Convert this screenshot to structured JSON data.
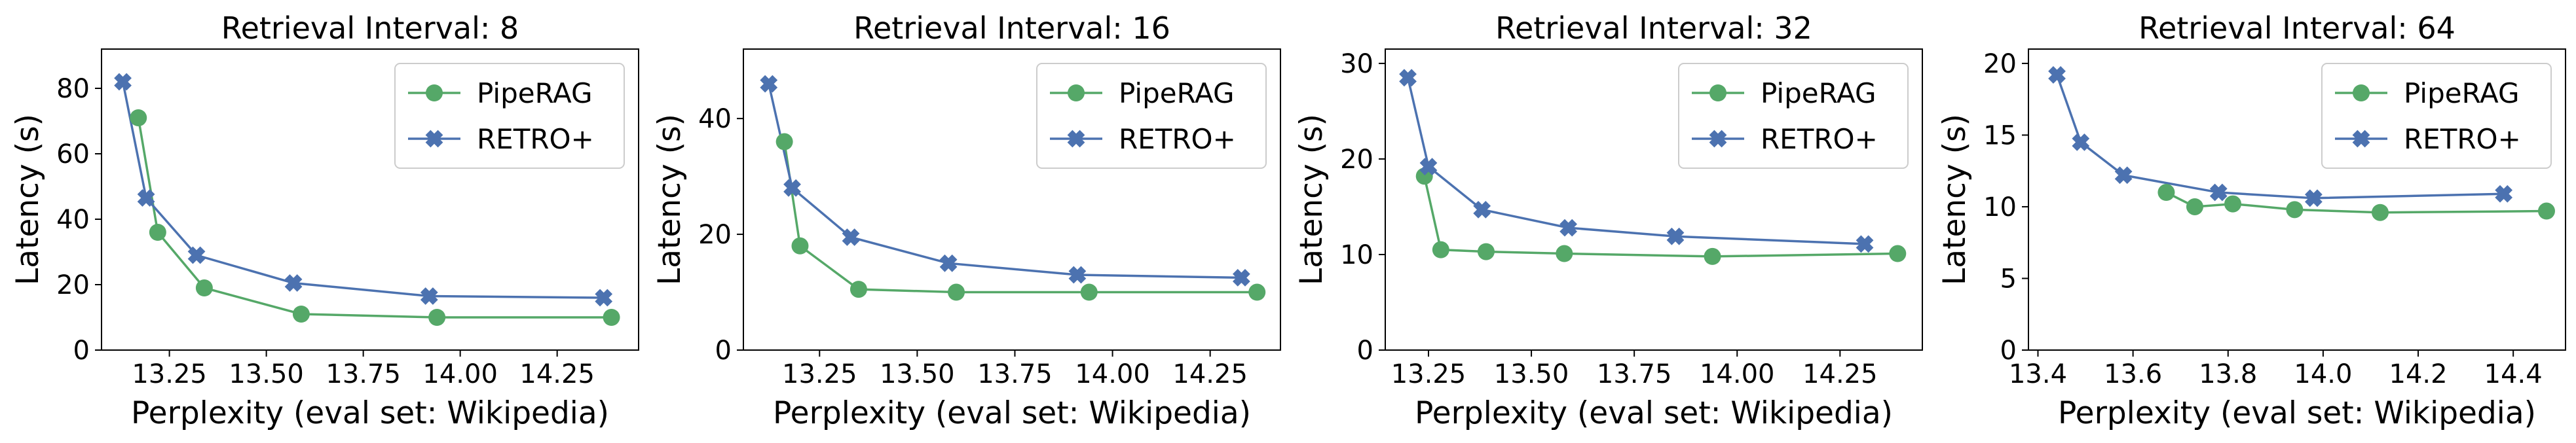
{
  "chart_data": [
    {
      "type": "line",
      "title": "Retrieval Interval: 8",
      "xlabel": "Perplexity (eval set: Wikipedia)",
      "ylabel": "Latency (s)",
      "xlim": [
        13.075,
        14.46
      ],
      "ylim": [
        0,
        92
      ],
      "xticks": [
        13.25,
        13.5,
        13.75,
        14.0,
        14.25
      ],
      "xtick_labels": [
        "13.25",
        "13.50",
        "13.75",
        "14.00",
        "14.25"
      ],
      "yticks": [
        0,
        20,
        40,
        60,
        80
      ],
      "ytick_labels": [
        "0",
        "20",
        "40",
        "60",
        "80"
      ],
      "legend_position": "top-right",
      "series": [
        {
          "name": "PipeRAG",
          "color": "#55a868",
          "marker": "circle",
          "x": [
            13.17,
            13.22,
            13.34,
            13.59,
            13.94,
            14.39
          ],
          "y": [
            71.0,
            36.0,
            19.0,
            11.0,
            10.0,
            10.0
          ]
        },
        {
          "name": "RETRO+",
          "color": "#4c72b0",
          "marker": "x",
          "x": [
            13.13,
            13.19,
            13.32,
            13.57,
            13.92,
            14.37
          ],
          "y": [
            82.0,
            46.5,
            29.0,
            20.5,
            16.5,
            16.0
          ]
        }
      ]
    },
    {
      "type": "line",
      "title": "Retrieval Interval: 16",
      "xlabel": "Perplexity (eval set: Wikipedia)",
      "ylabel": "Latency (s)",
      "xlim": [
        13.055,
        14.43
      ],
      "ylim": [
        0,
        52
      ],
      "xticks": [
        13.25,
        13.5,
        13.75,
        14.0,
        14.25
      ],
      "xtick_labels": [
        "13.25",
        "13.50",
        "13.75",
        "14.00",
        "14.25"
      ],
      "yticks": [
        0,
        20,
        40
      ],
      "ytick_labels": [
        "0",
        "20",
        "40"
      ],
      "legend_position": "top-right",
      "series": [
        {
          "name": "PipeRAG",
          "color": "#55a868",
          "marker": "circle",
          "x": [
            13.16,
            13.2,
            13.35,
            13.6,
            13.94,
            14.37
          ],
          "y": [
            36.0,
            18.0,
            10.5,
            10.0,
            10.0,
            10.0
          ]
        },
        {
          "name": "RETRO+",
          "color": "#4c72b0",
          "marker": "x",
          "x": [
            13.12,
            13.18,
            13.33,
            13.58,
            13.91,
            14.33
          ],
          "y": [
            46.0,
            28.0,
            19.5,
            15.0,
            13.0,
            12.5
          ]
        }
      ]
    },
    {
      "type": "line",
      "title": "Retrieval Interval: 32",
      "xlabel": "Perplexity (eval set: Wikipedia)",
      "ylabel": "Latency (s)",
      "xlim": [
        13.145,
        14.45
      ],
      "ylim": [
        0,
        31.5
      ],
      "xticks": [
        13.25,
        13.5,
        13.75,
        14.0,
        14.25
      ],
      "xtick_labels": [
        "13.25",
        "13.50",
        "13.75",
        "14.00",
        "14.25"
      ],
      "yticks": [
        0,
        10,
        20,
        30
      ],
      "ytick_labels": [
        "0",
        "10",
        "20",
        "30"
      ],
      "legend_position": "top-right",
      "series": [
        {
          "name": "PipeRAG",
          "color": "#55a868",
          "marker": "circle",
          "x": [
            13.24,
            13.28,
            13.39,
            13.58,
            13.94,
            14.39
          ],
          "y": [
            18.2,
            10.5,
            10.3,
            10.1,
            9.8,
            10.1
          ]
        },
        {
          "name": "RETRO+",
          "color": "#4c72b0",
          "marker": "x",
          "x": [
            13.2,
            13.25,
            13.38,
            13.59,
            13.85,
            14.31
          ],
          "y": [
            28.5,
            19.2,
            14.7,
            12.8,
            11.9,
            11.1
          ]
        }
      ]
    },
    {
      "type": "line",
      "title": "Retrieval Interval: 64",
      "xlabel": "Perplexity (eval set: Wikipedia)",
      "ylabel": "Latency (s)",
      "xlim": [
        13.38,
        14.51
      ],
      "ylim": [
        0,
        21
      ],
      "xticks": [
        13.4,
        13.6,
        13.8,
        14.0,
        14.2,
        14.4
      ],
      "xtick_labels": [
        "13.4",
        "13.6",
        "13.8",
        "14.0",
        "14.2",
        "14.4"
      ],
      "yticks": [
        0,
        5,
        10,
        15,
        20
      ],
      "ytick_labels": [
        "0",
        "5",
        "10",
        "15",
        "20"
      ],
      "legend_position": "top-right",
      "series": [
        {
          "name": "PipeRAG",
          "color": "#55a868",
          "marker": "circle",
          "x": [
            13.67,
            13.73,
            13.81,
            13.94,
            14.12,
            14.47
          ],
          "y": [
            11.0,
            10.0,
            10.2,
            9.8,
            9.6,
            9.7
          ]
        },
        {
          "name": "RETRO+",
          "color": "#4c72b0",
          "marker": "x",
          "x": [
            13.44,
            13.49,
            13.58,
            13.78,
            13.98,
            14.38
          ],
          "y": [
            19.2,
            14.5,
            12.2,
            11.0,
            10.6,
            10.9
          ]
        }
      ]
    }
  ]
}
